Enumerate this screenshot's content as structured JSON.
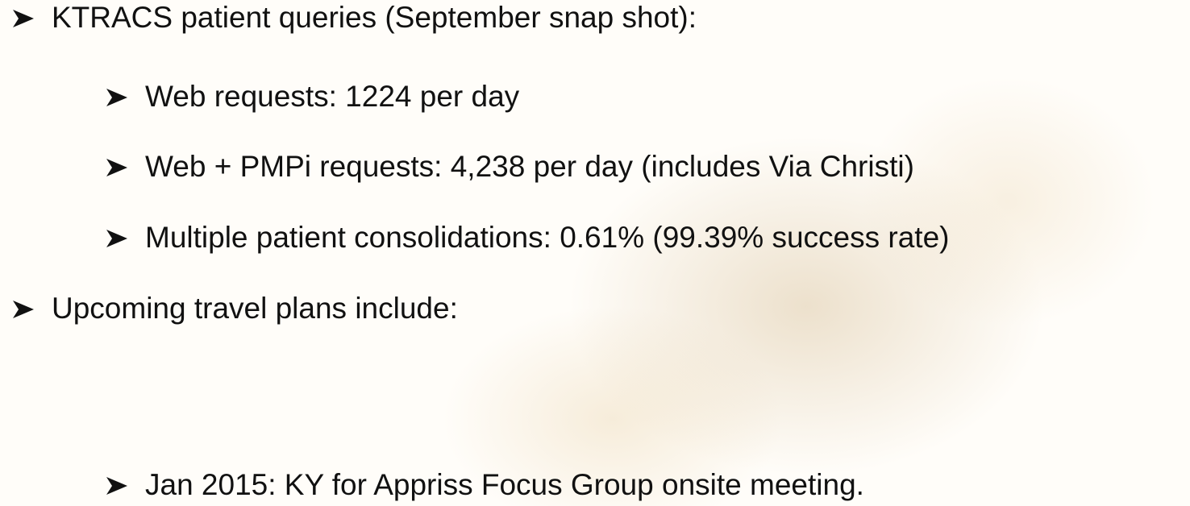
{
  "items": [
    {
      "text": "KTRACS patient queries (September snap shot):"
    },
    {
      "text": "Web requests: 1224 per day"
    },
    {
      "text": "Web + PMPi requests: 4,238 per day (includes Via Christi)"
    },
    {
      "text": "Multiple patient consolidations:  0.61% (99.39% success rate)"
    },
    {
      "text": "Upcoming travel plans include:"
    },
    {
      "text": "Jan 2015: KY for Appriss Focus Group onsite meeting."
    }
  ]
}
